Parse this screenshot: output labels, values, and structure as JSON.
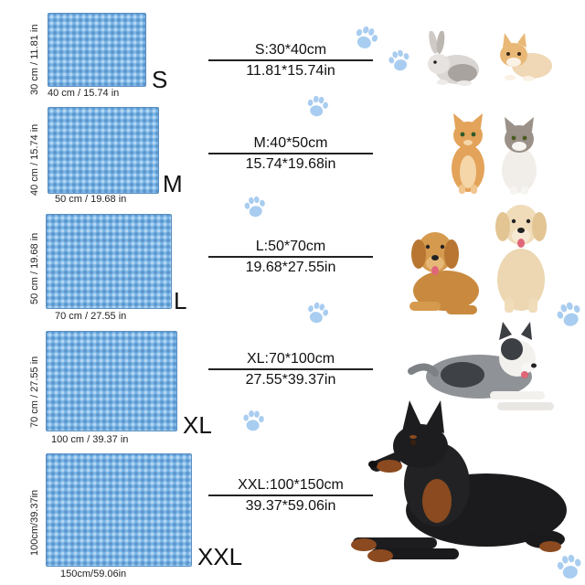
{
  "sizes": [
    {
      "letter": "S",
      "height_label": "30 cm / 11.81 in",
      "width_label": "40 cm / 15.74 in",
      "metric": "S:30*40cm",
      "imperial": "11.81*15.74in"
    },
    {
      "letter": "M",
      "height_label": "40 cm / 15.74 in",
      "width_label": "50 cm / 19.68 in",
      "metric": "M:40*50cm",
      "imperial": "15.74*19.68in"
    },
    {
      "letter": "L",
      "height_label": "50 cm / 19.68 in",
      "width_label": "70 cm / 27.55 in",
      "metric": "L:50*70cm",
      "imperial": "19.68*27.55in"
    },
    {
      "letter": "XL",
      "height_label": "70 cm / 27.55 in",
      "width_label": "100 cm / 39.37 in",
      "metric": "XL:70*100cm",
      "imperial": "27.55*39.37in"
    },
    {
      "letter": "XXL",
      "height_label": "100cm/39.37in",
      "width_label": "150cm/59.06in",
      "metric": "XXL:100*150cm",
      "imperial": "39.37*59.06in"
    }
  ],
  "colors": {
    "mat": "#78b4e6",
    "paw": "#a9cdf0"
  },
  "icons": [
    "paw-icon",
    "rabbit-icon",
    "kitten-icon",
    "cat-icon",
    "golden-retriever-icon",
    "border-collie-icon",
    "doberman-icon"
  ]
}
